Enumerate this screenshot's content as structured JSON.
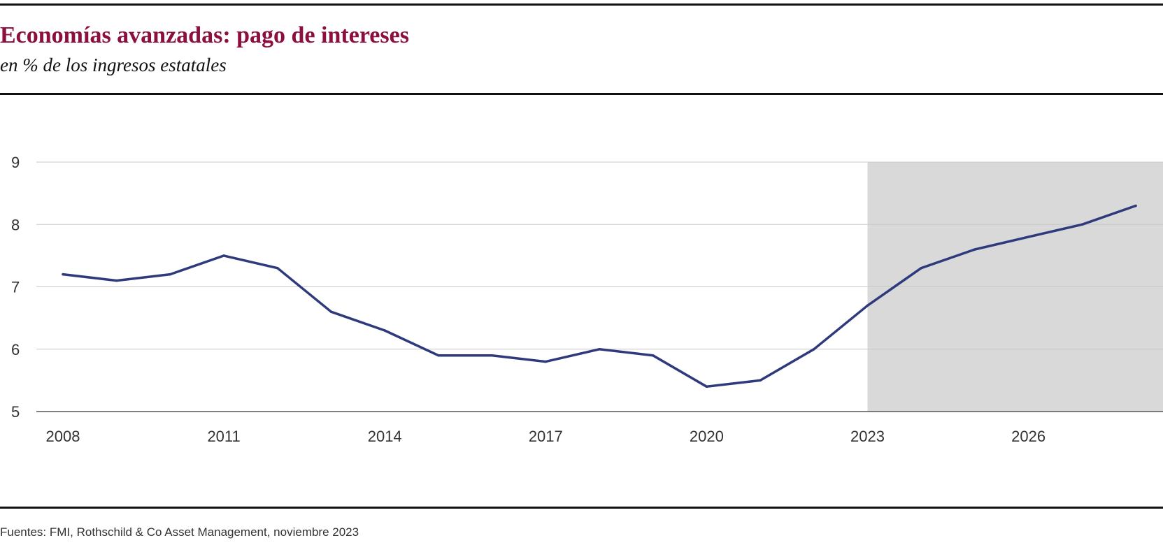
{
  "header": {
    "title": "Economías avanzadas: pago de intereses",
    "subtitle": "en % de los ingresos estatales"
  },
  "footer": {
    "source": "Fuentes: FMI, Rothschild & Co Asset Management, noviembre 2023"
  },
  "colors": {
    "line": "#2e3a7c",
    "forecast_shade": "#d9d9d9",
    "gridline": "#c8c8c8",
    "title": "#8c0f3f"
  },
  "chart_data": {
    "type": "line",
    "title": "Economías avanzadas: pago de intereses",
    "subtitle": "en % de los ingresos estatales",
    "xlabel": "",
    "ylabel": "",
    "x": [
      2008,
      2009,
      2010,
      2011,
      2012,
      2013,
      2014,
      2015,
      2016,
      2017,
      2018,
      2019,
      2020,
      2021,
      2022,
      2023,
      2024,
      2025,
      2026,
      2027,
      2028
    ],
    "series": [
      {
        "name": "",
        "values": [
          7.2,
          7.1,
          7.2,
          7.5,
          7.3,
          6.6,
          6.3,
          5.9,
          5.9,
          5.8,
          6.0,
          5.9,
          5.4,
          5.5,
          6.0,
          6.7,
          7.3,
          7.6,
          7.8,
          8.0,
          8.3
        ]
      }
    ],
    "xlim": [
      2007.5,
      2028.5
    ],
    "ylim": [
      5,
      9
    ],
    "xticks": [
      2008,
      2011,
      2014,
      2017,
      2020,
      2023,
      2026
    ],
    "yticks": [
      5,
      6,
      7,
      8,
      9
    ],
    "grid": true,
    "forecast_from": 2023
  }
}
